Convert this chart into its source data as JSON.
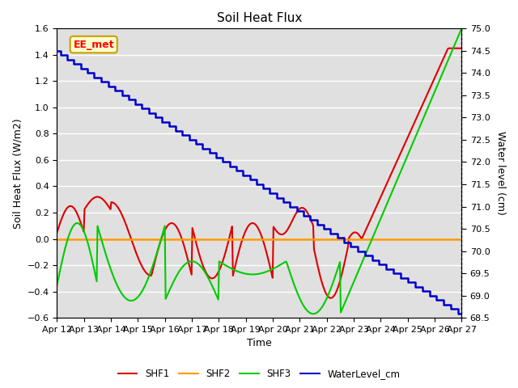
{
  "title": "Soil Heat Flux",
  "ylabel_left": "Soil Heat Flux (W/m2)",
  "ylabel_right": "Water level (cm)",
  "xlabel": "Time",
  "xlim": [
    0,
    15
  ],
  "ylim_left": [
    -0.6,
    1.6
  ],
  "ylim_right": [
    68.5,
    75.0
  ],
  "bg_color": "#e0e0e0",
  "annotation_text": "EE_met",
  "annotation_bg": "#ffffcc",
  "annotation_border": "#c8a000",
  "grid_color": "#ffffff",
  "series": {
    "SHF1": {
      "color": "#dd0000",
      "lw": 1.5
    },
    "SHF2": {
      "color": "#ff9900",
      "lw": 1.8
    },
    "SHF3": {
      "color": "#00cc00",
      "lw": 1.5
    },
    "WaterLevel_cm": {
      "color": "#0000cc",
      "lw": 1.8
    }
  },
  "x_tick_labels": [
    "Apr 12",
    "Apr 13",
    "Apr 14",
    "Apr 15",
    "Apr 16",
    "Apr 17",
    "Apr 18",
    "Apr 19",
    "Apr 20",
    "Apr 21",
    "Apr 22",
    "Apr 23",
    "Apr 24",
    "Apr 25",
    "Apr 26",
    "Apr 27"
  ],
  "x_tick_positions": [
    0,
    1,
    2,
    3,
    4,
    5,
    6,
    7,
    8,
    9,
    10,
    11,
    12,
    13,
    14,
    15
  ],
  "yticks_left": [
    -0.6,
    -0.4,
    -0.2,
    0.0,
    0.2,
    0.4,
    0.6,
    0.8,
    1.0,
    1.2,
    1.4,
    1.6
  ],
  "yticks_right": [
    68.5,
    69.0,
    69.5,
    70.0,
    70.5,
    71.0,
    71.5,
    72.0,
    72.5,
    73.0,
    73.5,
    74.0,
    74.5,
    75.0
  ]
}
